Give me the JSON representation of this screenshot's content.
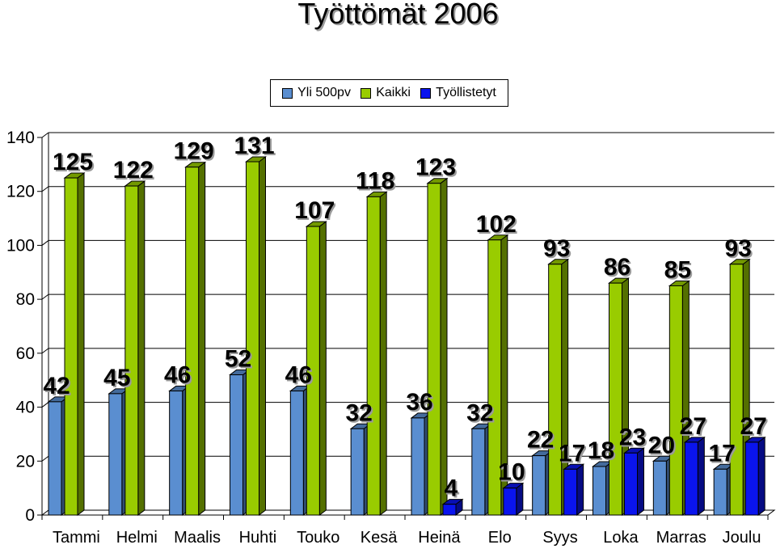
{
  "chart_data": {
    "type": "bar",
    "title": "Työttömät 2006",
    "categories": [
      "Tammi",
      "Helmi",
      "Maalis",
      "Huhti",
      "Touko",
      "Kesä",
      "Heinä",
      "Elo",
      "Syys",
      "Loka",
      "Marras",
      "Joulu"
    ],
    "series": [
      {
        "name": "Yli 500pv",
        "color": "#5a8ed0",
        "values": [
          42,
          45,
          46,
          52,
          46,
          32,
          36,
          32,
          22,
          18,
          20,
          17
        ],
        "labels": [
          "42",
          "45",
          "46",
          "52",
          "46",
          "32",
          "36",
          "32",
          "22",
          "18",
          "20",
          "17"
        ]
      },
      {
        "name": "Kaikki",
        "color": "#99cc00",
        "values": [
          125,
          122,
          129,
          131,
          107,
          118,
          123,
          102,
          93,
          86,
          85,
          93
        ],
        "labels": [
          "125",
          "122",
          "129",
          "131",
          "107",
          "118",
          "123",
          "102",
          "93",
          "86",
          "85",
          "93"
        ]
      },
      {
        "name": "Työllistetyt",
        "color": "#0a14ee",
        "values": [
          0,
          0,
          0,
          0,
          0,
          0,
          4,
          10,
          17,
          23,
          27,
          27
        ],
        "labels": [
          "",
          "",
          "",
          "",
          "",
          "",
          "4",
          "10",
          "17",
          "23",
          "27",
          "27"
        ]
      }
    ],
    "ylim": [
      0,
      140
    ],
    "yticks": [
      "0",
      "20",
      "40",
      "60",
      "80",
      "100",
      "120",
      "140"
    ],
    "grid": true,
    "legend_position": "top"
  }
}
